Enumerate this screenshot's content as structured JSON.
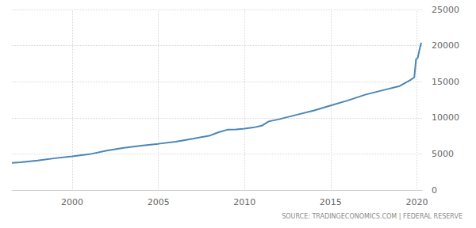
{
  "chart_data": {
    "type": "line",
    "source": "SOURCE: TRADINGECONOMICS.COM | FEDERAL RESERVE",
    "color": "#4a86b8",
    "x": [
      1996.5,
      1997,
      1998,
      1999,
      2000,
      2001,
      2002,
      2003,
      2004,
      2005,
      2006,
      2007,
      2008,
      2008.5,
      2009,
      2009.5,
      2010,
      2010.5,
      2011,
      2011.4,
      2012,
      2013,
      2014,
      2015,
      2016,
      2017,
      2018,
      2019,
      2019.6,
      2019.85,
      2019.95,
      2020.05,
      2020.15,
      2020.25
    ],
    "values": [
      3760,
      3850,
      4080,
      4400,
      4650,
      4950,
      5450,
      5850,
      6150,
      6400,
      6700,
      7100,
      7550,
      8000,
      8350,
      8400,
      8500,
      8650,
      8900,
      9500,
      9800,
      10400,
      11000,
      11700,
      12400,
      13200,
      13800,
      14400,
      15200,
      15600,
      18100,
      18300,
      19400,
      20400
    ],
    "xlim": [
      1996.5,
      2020.3
    ],
    "xticks": [
      2000,
      2005,
      2010,
      2015,
      2020
    ],
    "ylim": [
      0,
      25000
    ],
    "yticks": [
      0,
      5000,
      10000,
      15000,
      20000,
      25000
    ],
    "grid": true
  }
}
